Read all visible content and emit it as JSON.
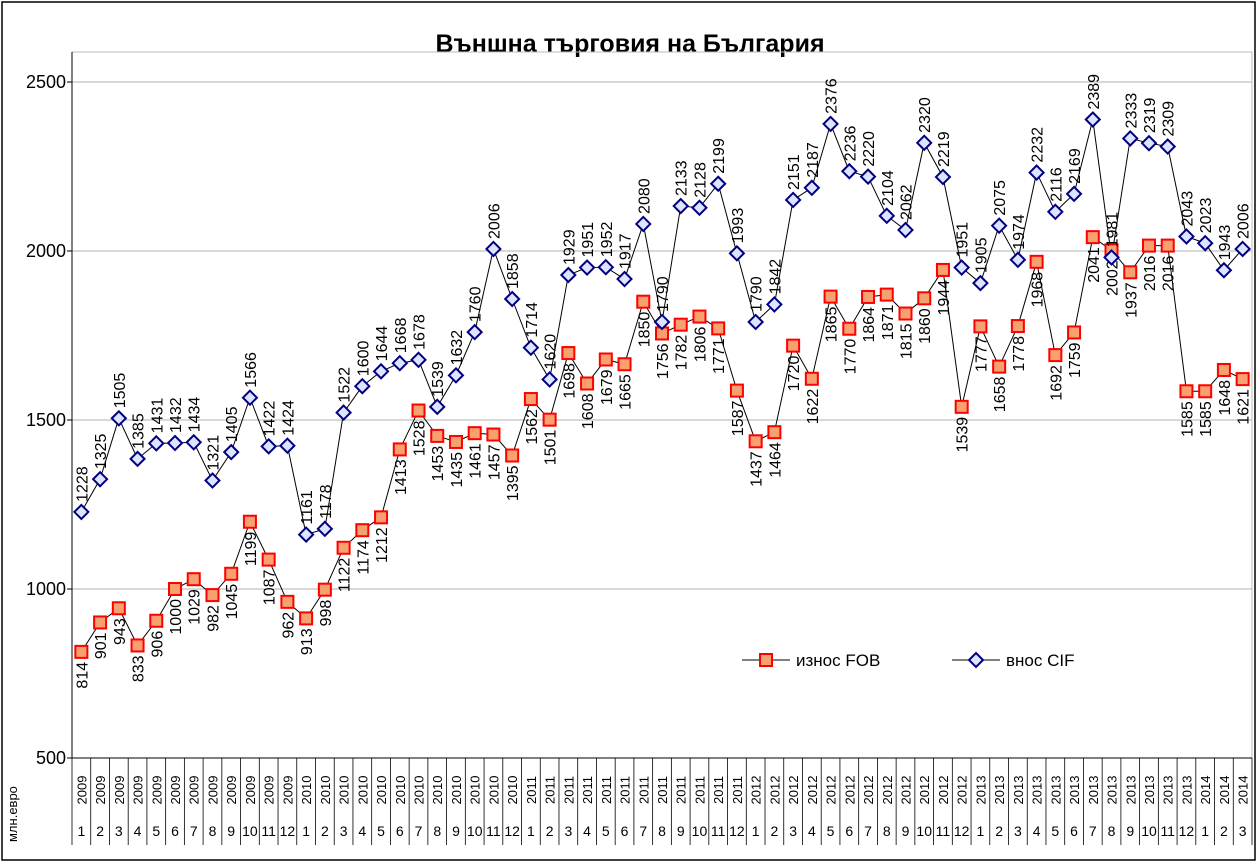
{
  "chart_data": {
    "type": "line",
    "title": "Външна търговия на България",
    "y_label": "млн.евро",
    "categories": [
      "1",
      "2",
      "3",
      "4",
      "5",
      "6",
      "7",
      "8",
      "9",
      "10",
      "11",
      "12",
      "1",
      "2",
      "3",
      "4",
      "5",
      "6",
      "7",
      "8",
      "9",
      "10",
      "11",
      "12",
      "1",
      "2",
      "3",
      "4",
      "5",
      "6",
      "7",
      "8",
      "9",
      "10",
      "11",
      "12",
      "1",
      "2",
      "3",
      "4",
      "5",
      "6",
      "7",
      "8",
      "9",
      "10",
      "11",
      "12",
      "1",
      "2",
      "3",
      "4",
      "5",
      "6",
      "7",
      "8",
      "9",
      "10",
      "11",
      "12",
      "1",
      "2",
      "3"
    ],
    "category_years": [
      "2009",
      "2009",
      "2009",
      "2009",
      "2009",
      "2009",
      "2009",
      "2009",
      "2009",
      "2009",
      "2009",
      "2009",
      "2010",
      "2010",
      "2010",
      "2010",
      "2010",
      "2010",
      "2010",
      "2010",
      "2010",
      "2010",
      "2010",
      "2010",
      "2011",
      "2011",
      "2011",
      "2011",
      "2011",
      "2011",
      "2011",
      "2011",
      "2011",
      "2011",
      "2011",
      "2011",
      "2012",
      "2012",
      "2012",
      "2012",
      "2012",
      "2012",
      "2012",
      "2012",
      "2012",
      "2012",
      "2012",
      "2012",
      "2013",
      "2013",
      "2013",
      "2013",
      "2013",
      "2013",
      "2013",
      "2013",
      "2013",
      "2013",
      "2013",
      "2013",
      "2014",
      "2014",
      "2014"
    ],
    "series": [
      {
        "name": "износ FOB",
        "color": "#ff0000",
        "marker": "square",
        "values": [
          814,
          901,
          943,
          833,
          906,
          1000,
          1029,
          982,
          1045,
          1199,
          1087,
          962,
          913,
          998,
          1122,
          1174,
          1212,
          1413,
          1528,
          1453,
          1435,
          1461,
          1457,
          1395,
          1562,
          1501,
          1698,
          1608,
          1679,
          1665,
          1850,
          1756,
          1782,
          1806,
          1771,
          1587,
          1437,
          1464,
          1720,
          1622,
          1865,
          1770,
          1864,
          1871,
          1815,
          1860,
          1944,
          1539,
          1777,
          1658,
          1778,
          1968,
          1692,
          1759,
          2041,
          2002,
          1937,
          2016,
          2016,
          1585,
          1585,
          1648,
          1621
        ]
      },
      {
        "name": "внос CIF",
        "color": "#000080",
        "marker": "diamond",
        "values": [
          1228,
          1325,
          1505,
          1385,
          1431,
          1432,
          1434,
          1321,
          1405,
          1566,
          1422,
          1424,
          1161,
          1178,
          1522,
          1600,
          1644,
          1668,
          1678,
          1539,
          1632,
          1760,
          2006,
          1858,
          1714,
          1620,
          1929,
          1951,
          1952,
          1917,
          2080,
          1790,
          2133,
          2128,
          2199,
          1993,
          1790,
          1842,
          2151,
          2187,
          2376,
          2236,
          2220,
          2104,
          2062,
          2320,
          2219,
          1951,
          1905,
          2075,
          1974,
          2232,
          2116,
          2169,
          2389,
          1981,
          2333,
          2319,
          2309,
          2043,
          2023,
          1943,
          2006
        ]
      }
    ],
    "ylim": [
      500,
      2500
    ],
    "yticks": [
      500,
      1000,
      1500,
      2000,
      2500
    ],
    "grid": true,
    "legend": "lower right"
  }
}
